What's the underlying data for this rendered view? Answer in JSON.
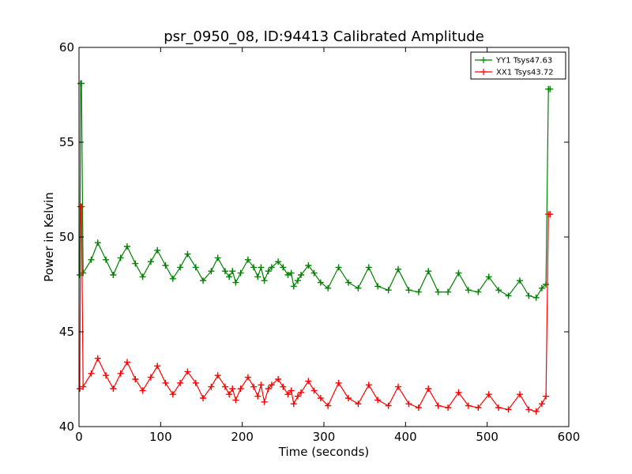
{
  "chart_data": {
    "type": "line",
    "title": "psr_0950_08, ID:94413 Calibrated Amplitude",
    "xlabel": "Time (seconds)",
    "ylabel": "Power in Kelvin",
    "xlim": [
      0,
      600
    ],
    "ylim": [
      40,
      60
    ],
    "xticks": [
      0,
      100,
      200,
      300,
      400,
      500,
      600
    ],
    "yticks": [
      40,
      45,
      50,
      55,
      60
    ],
    "xtick_labels": [
      "0",
      "100",
      "200",
      "300",
      "400",
      "500",
      "600"
    ],
    "ytick_labels": [
      "40",
      "45",
      "50",
      "55",
      "60"
    ],
    "grid": false,
    "legend_position": "top-right",
    "marker": "plus",
    "series": [
      {
        "name": "YY1 Tsys47.63",
        "color": "#008000",
        "x": [
          1,
          2,
          3,
          5,
          15,
          23,
          33,
          42,
          51,
          59,
          69,
          78,
          88,
          96,
          106,
          115,
          124,
          133,
          143,
          152,
          162,
          170,
          179,
          184,
          188,
          192,
          198,
          207,
          214,
          219,
          223,
          227,
          232,
          236,
          244,
          250,
          256,
          260,
          263,
          268,
          272,
          281,
          288,
          296,
          305,
          318,
          330,
          342,
          355,
          366,
          379,
          391,
          404,
          416,
          428,
          440,
          452,
          465,
          477,
          489,
          502,
          514,
          526,
          540,
          551,
          560,
          567,
          572,
          575,
          577
        ],
        "y": [
          48.0,
          58.1,
          58.1,
          48.1,
          48.8,
          49.7,
          48.8,
          48.0,
          48.9,
          49.5,
          48.6,
          47.9,
          48.7,
          49.3,
          48.5,
          47.8,
          48.4,
          49.1,
          48.4,
          47.7,
          48.2,
          48.9,
          48.2,
          47.9,
          48.2,
          47.6,
          48.1,
          48.8,
          48.4,
          47.9,
          48.4,
          47.7,
          48.2,
          48.4,
          48.7,
          48.4,
          48.0,
          48.1,
          47.4,
          47.7,
          48.0,
          48.5,
          48.1,
          47.6,
          47.3,
          48.4,
          47.6,
          47.3,
          48.4,
          47.4,
          47.2,
          48.3,
          47.2,
          47.1,
          48.2,
          47.1,
          47.1,
          48.1,
          47.2,
          47.1,
          47.9,
          47.2,
          46.9,
          47.7,
          46.9,
          46.8,
          47.3,
          47.5,
          57.8,
          57.8
        ]
      },
      {
        "name": "XX1 Tsys43.72",
        "color": "#ff0000",
        "x": [
          1,
          2,
          3,
          5,
          15,
          23,
          33,
          42,
          51,
          59,
          69,
          78,
          88,
          96,
          106,
          115,
          124,
          133,
          143,
          152,
          162,
          170,
          179,
          184,
          188,
          192,
          198,
          207,
          214,
          219,
          223,
          227,
          232,
          236,
          244,
          250,
          256,
          260,
          263,
          268,
          272,
          281,
          288,
          296,
          305,
          318,
          330,
          342,
          355,
          366,
          379,
          391,
          404,
          416,
          428,
          440,
          452,
          465,
          477,
          489,
          502,
          514,
          526,
          540,
          551,
          560,
          567,
          572,
          575,
          577
        ],
        "y": [
          42.0,
          51.6,
          51.6,
          42.1,
          42.8,
          43.6,
          42.7,
          42.0,
          42.8,
          43.4,
          42.5,
          41.9,
          42.6,
          43.2,
          42.3,
          41.7,
          42.3,
          42.9,
          42.3,
          41.5,
          42.1,
          42.7,
          42.1,
          41.7,
          42.0,
          41.4,
          42.0,
          42.6,
          42.1,
          41.6,
          42.2,
          41.3,
          42.0,
          42.2,
          42.5,
          42.1,
          41.7,
          41.9,
          41.2,
          41.6,
          41.8,
          42.4,
          41.9,
          41.5,
          41.1,
          42.3,
          41.5,
          41.2,
          42.2,
          41.4,
          41.1,
          42.1,
          41.2,
          41.0,
          42.0,
          41.1,
          41.0,
          41.8,
          41.1,
          41.0,
          41.7,
          41.0,
          40.9,
          41.7,
          40.9,
          40.8,
          41.2,
          41.6,
          51.2,
          51.2
        ]
      }
    ]
  }
}
